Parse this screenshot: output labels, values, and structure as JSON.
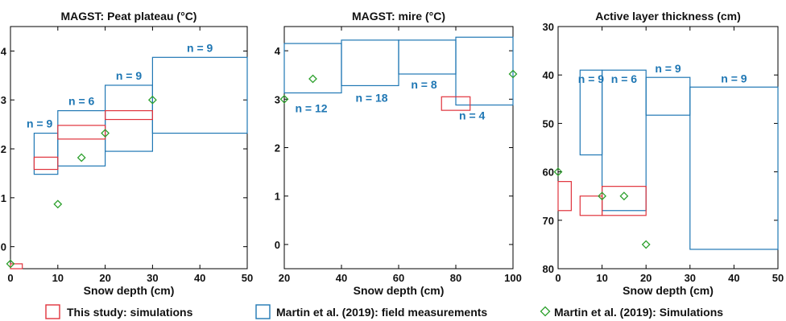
{
  "colors": {
    "simulation": "#e0333c",
    "field": "#1f77b4",
    "martin_sim": "#2ca02c",
    "axis": "#000000"
  },
  "legend": {
    "items": [
      {
        "label": "This study: simulations",
        "marker": "red-box"
      },
      {
        "label": "Martin et al. (2019): field measurements",
        "marker": "blue-box"
      },
      {
        "label": "Martin et al. (2019): Simulations",
        "marker": "green-diamond"
      }
    ]
  },
  "chart_data": [
    {
      "type": "box-ranges",
      "title": "MAGST: Peat plateau (°C)",
      "xlabel": "Snow depth (cm)",
      "ylabel": "",
      "xlim": [
        0,
        50
      ],
      "ylim": [
        -0.45,
        4.5
      ],
      "y_inverted": false,
      "xticks": [
        0,
        10,
        20,
        30,
        40,
        50
      ],
      "yticks": [
        0,
        1,
        2,
        3,
        4
      ],
      "field_boxes": [
        {
          "x0": 5,
          "x1": 10,
          "y0": 1.48,
          "y1": 2.32,
          "n_label": "n = 9"
        },
        {
          "x0": 10,
          "x1": 20,
          "y0": 1.65,
          "y1": 2.78,
          "n_label": "n = 6"
        },
        {
          "x0": 20,
          "x1": 30,
          "y0": 1.95,
          "y1": 3.3,
          "n_label": "n = 9"
        },
        {
          "x0": 30,
          "x1": 50,
          "y0": 2.32,
          "y1": 3.87,
          "n_label": "n = 9"
        }
      ],
      "sim_boxes": [
        {
          "x0": 0,
          "x1": 2.5,
          "y0": -0.45,
          "y1": -0.35
        },
        {
          "x0": 5,
          "x1": 10,
          "y0": 1.58,
          "y1": 1.83
        },
        {
          "x0": 10,
          "x1": 20,
          "y0": 2.2,
          "y1": 2.48
        },
        {
          "x0": 20,
          "x1": 30,
          "y0": 2.6,
          "y1": 2.78
        }
      ],
      "diamonds": [
        {
          "x": 0,
          "y": -0.35
        },
        {
          "x": 10,
          "y": 0.87
        },
        {
          "x": 15,
          "y": 1.82
        },
        {
          "x": 20,
          "y": 2.32
        },
        {
          "x": 30,
          "y": 3.0
        }
      ]
    },
    {
      "type": "box-ranges",
      "title": "MAGST: mire (°C)",
      "xlabel": "Snow depth (cm)",
      "ylabel": "",
      "xlim": [
        20,
        100
      ],
      "ylim": [
        -0.5,
        4.5
      ],
      "y_inverted": false,
      "xticks": [
        20,
        40,
        60,
        80,
        100
      ],
      "yticks": [
        0,
        1,
        2,
        3,
        4
      ],
      "field_boxes": [
        {
          "x0": 20,
          "x1": 40,
          "y0": 3.13,
          "y1": 4.15,
          "n_label": "n = 12"
        },
        {
          "x0": 40,
          "x1": 60,
          "y0": 3.28,
          "y1": 4.22,
          "n_label": "n = 18"
        },
        {
          "x0": 60,
          "x1": 80,
          "y0": 3.52,
          "y1": 4.22,
          "n_label": "n = 8"
        },
        {
          "x0": 80,
          "x1": 100,
          "y0": 2.88,
          "y1": 4.28,
          "n_label": "n = 4"
        }
      ],
      "sim_boxes": [
        {
          "x0": 75,
          "x1": 85,
          "y0": 2.77,
          "y1": 3.05
        }
      ],
      "diamonds": [
        {
          "x": 20,
          "y": 3.0
        },
        {
          "x": 30,
          "y": 3.42
        },
        {
          "x": 100,
          "y": 3.52
        }
      ]
    },
    {
      "type": "box-ranges",
      "title": "Active layer thickness (cm)",
      "xlabel": "Snow depth (cm)",
      "ylabel": "",
      "xlim": [
        0,
        50
      ],
      "ylim": [
        30,
        80
      ],
      "y_inverted": true,
      "xticks": [
        0,
        10,
        20,
        30,
        40,
        50
      ],
      "yticks": [
        30,
        40,
        50,
        60,
        70,
        80
      ],
      "field_boxes": [
        {
          "x0": 5,
          "x1": 10,
          "y0": 39,
          "y1": 56.5,
          "n_label": "n = 9"
        },
        {
          "x0": 10,
          "x1": 20,
          "y0": 39,
          "y1": 68,
          "n_label": "n = 6"
        },
        {
          "x0": 20,
          "x1": 30,
          "y0": 40.5,
          "y1": 48.3,
          "n_label": "n = 9"
        },
        {
          "x0": 30,
          "x1": 50,
          "y0": 42.5,
          "y1": 76,
          "n_label": "n = 9"
        }
      ],
      "sim_boxes": [
        {
          "x0": 0,
          "x1": 3,
          "y0": 62,
          "y1": 68
        },
        {
          "x0": 5,
          "x1": 10,
          "y0": 65,
          "y1": 69
        },
        {
          "x0": 10,
          "x1": 20,
          "y0": 63,
          "y1": 69
        }
      ],
      "diamonds": [
        {
          "x": 0,
          "y": 60
        },
        {
          "x": 10,
          "y": 65
        },
        {
          "x": 15,
          "y": 65
        },
        {
          "x": 20,
          "y": 75
        }
      ]
    }
  ]
}
